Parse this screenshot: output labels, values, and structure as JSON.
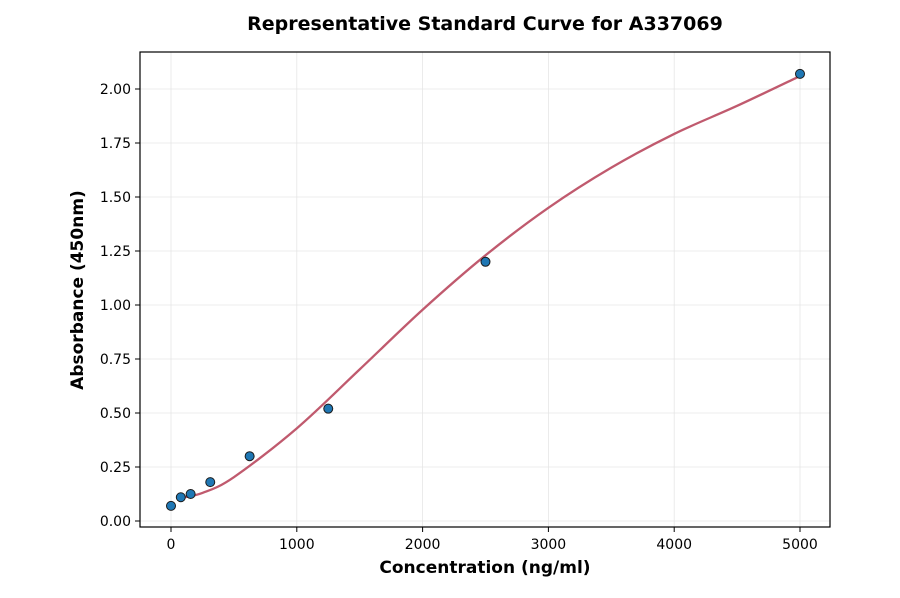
{
  "chart_data": {
    "type": "scatter",
    "title": "Representative Standard Curve for A337069",
    "xlabel": "Concentration (ng/ml)",
    "ylabel": "Absorbance (450nm)",
    "xlim": [
      -250,
      5250
    ],
    "ylim": [
      -0.03,
      2.2
    ],
    "xticks": [
      0,
      1000,
      2000,
      3000,
      4000,
      5000
    ],
    "yticks": [
      "0.00",
      "0.25",
      "0.50",
      "0.75",
      "1.00",
      "1.25",
      "1.50",
      "1.75",
      "2.00"
    ],
    "grid": true,
    "points": {
      "x": [
        0,
        78,
        156,
        312,
        625,
        1250,
        2500,
        5000
      ],
      "y": [
        0.07,
        0.11,
        0.125,
        0.18,
        0.3,
        0.52,
        1.2,
        2.07
      ],
      "color": "#1f77b4"
    },
    "fit_curve": {
      "x": [
        78,
        250,
        500,
        1000,
        1500,
        2000,
        2500,
        3000,
        3500,
        4000,
        4500,
        5000
      ],
      "y": [
        0.107,
        0.13,
        0.203,
        0.429,
        0.702,
        0.978,
        1.23,
        1.45,
        1.636,
        1.792,
        1.922,
        2.06
      ],
      "color": "#c05a6e"
    }
  }
}
